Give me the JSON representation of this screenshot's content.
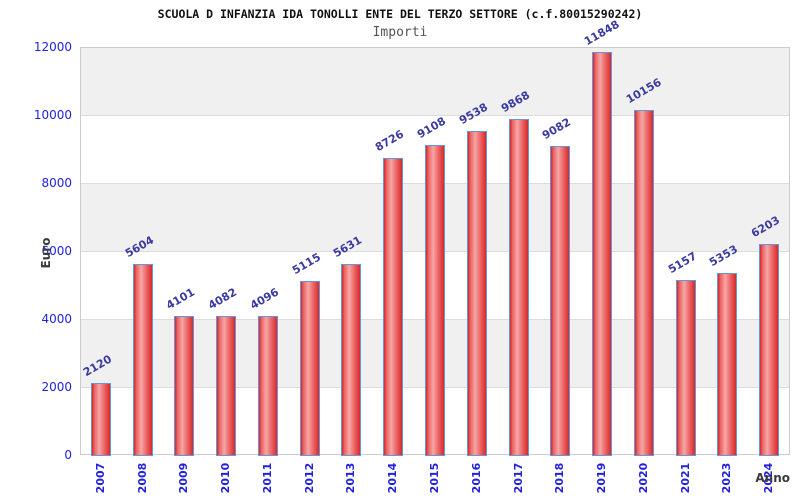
{
  "chart_data": {
    "type": "bar",
    "title": "SCUOLA D INFANZIA IDA TONOLLI ENTE DEL TERZO SETTORE (c.f.80015290242)",
    "subtitle": "Importi",
    "xlabel": "Anno",
    "ylabel": "Euro",
    "categories": [
      "2007",
      "2008",
      "2009",
      "2010",
      "2011",
      "2012",
      "2013",
      "2014",
      "2015",
      "2016",
      "2017",
      "2018",
      "2019",
      "2020",
      "2021",
      "2023",
      "2024"
    ],
    "values": [
      2120,
      5604,
      4101,
      4082,
      4096,
      5115,
      5631,
      8726,
      9108,
      9538,
      9868,
      9082,
      11848,
      10156,
      5157,
      5353,
      6203
    ],
    "ylim": [
      0,
      12000
    ],
    "ytick_step": 2000,
    "yticks": [
      "0",
      "2000",
      "4000",
      "6000",
      "8000",
      "10000",
      "12000"
    ],
    "legend": null,
    "grid": "horizontal-bands-alternating",
    "colors": {
      "bar_fill_dark": "#d62a2a",
      "bar_fill_light": "#f4a6a6",
      "bar_border": "#6097dd",
      "tick_label": "#2222dd",
      "value_label": "#3a3aa0",
      "band_gray": "#f0f0f0",
      "band_white": "#ffffff",
      "gridline": "#dcdcdc",
      "plot_border": "#cccccc",
      "title": "#111111",
      "subtitle": "#555555",
      "axis_label": "#3a3a3a"
    }
  }
}
